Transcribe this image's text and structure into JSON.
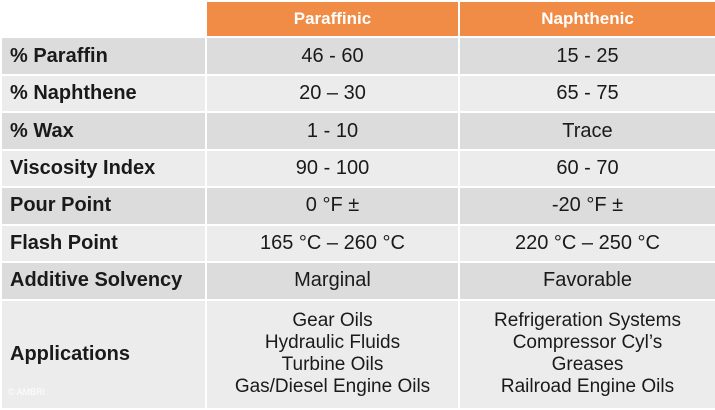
{
  "header": {
    "col_a": "Paraffinic",
    "col_b": "Naphthenic"
  },
  "rows": [
    {
      "label": "% Paraffin",
      "a": "46 - 60",
      "b": "15 - 25"
    },
    {
      "label": "% Naphthene",
      "a": "20 – 30",
      "b": "65 - 75"
    },
    {
      "label": "% Wax",
      "a": "1 - 10",
      "b": "Trace"
    },
    {
      "label": "Viscosity Index",
      "a": "90 - 100",
      "b": "60 - 70"
    },
    {
      "label": "Pour Point",
      "a": "0 °F ±",
      "b": "-20 °F ±"
    },
    {
      "label": "Flash Point",
      "a": "165 °C – 260 °C",
      "b": "220 °C – 250 °C"
    },
    {
      "label": "Additive Solvency",
      "a": "Marginal",
      "b": "Favorable"
    }
  ],
  "applications": {
    "label": "Applications",
    "a": [
      "Gear Oils",
      "Hydraulic Fluids",
      "Turbine Oils",
      "Gas/Diesel Engine Oils"
    ],
    "b": [
      "Refrigeration Systems",
      "Compressor Cyl’s",
      "Greases",
      "Railroad Engine Oils"
    ]
  },
  "copyright": "© AMBRI",
  "colors": {
    "header": "#f08c46",
    "row_dark": "#dcdcdc",
    "row_light": "#ececec"
  }
}
